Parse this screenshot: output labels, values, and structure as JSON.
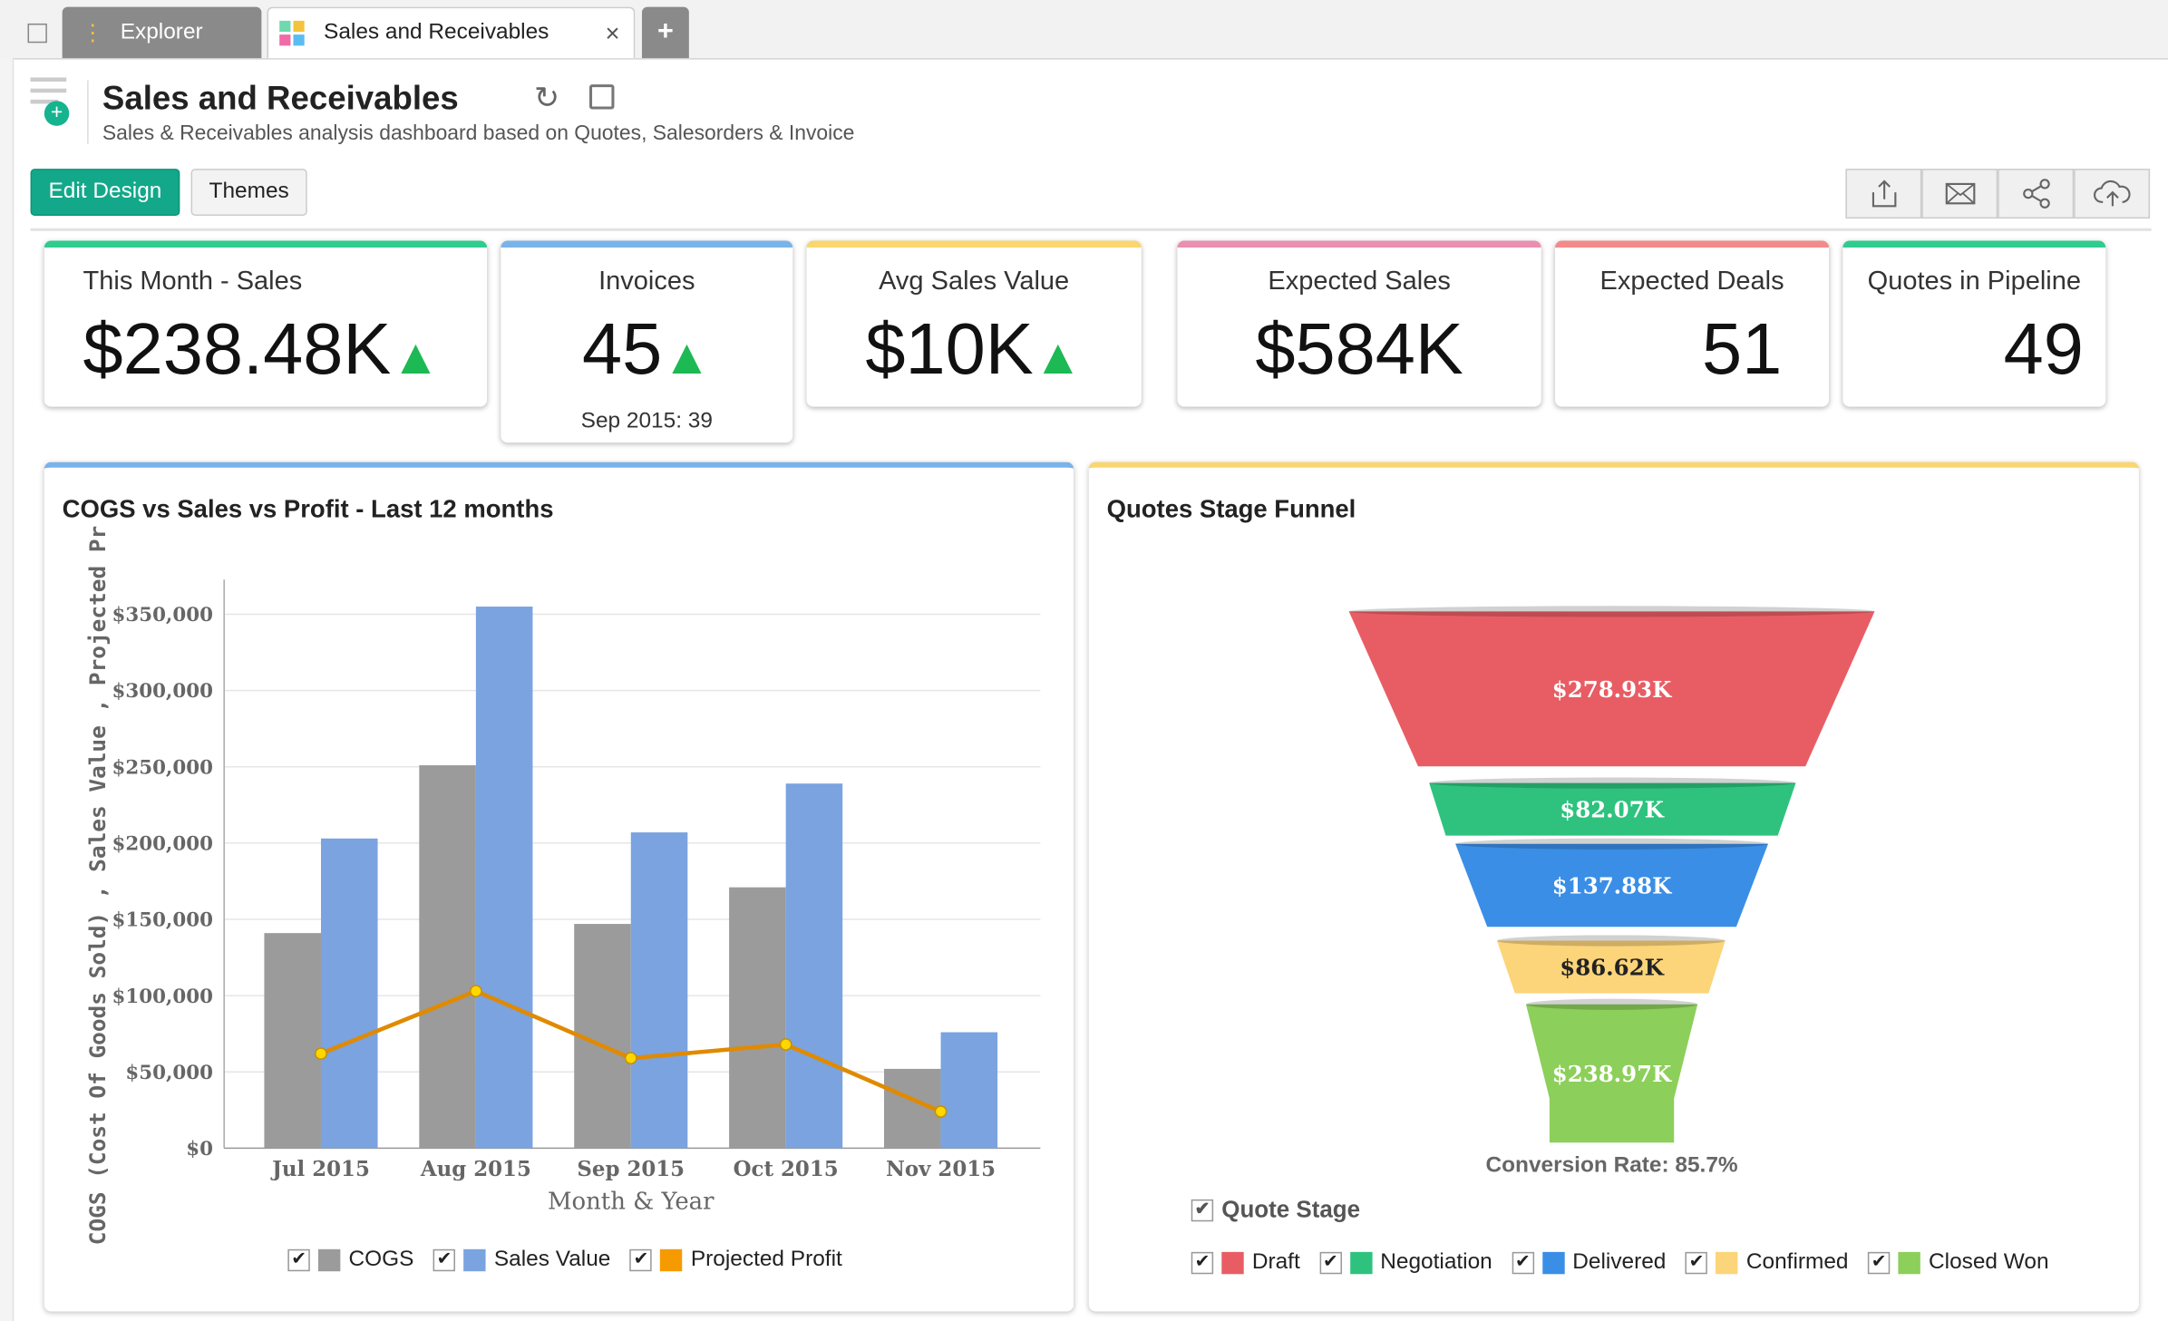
{
  "tabs": {
    "explorer": "Explorer",
    "active": "Sales and Receivables",
    "close": "×",
    "add": "+"
  },
  "header": {
    "title": "Sales and Receivables",
    "subtitle": "Sales & Receivables analysis dashboard based on Quotes, Salesorders & Invoice"
  },
  "toolbar": {
    "edit_design": "Edit Design",
    "themes": "Themes",
    "icons": [
      "export-icon",
      "email-icon",
      "share-icon",
      "publish-cloud-icon"
    ]
  },
  "colors": {
    "accent": "#13a88a",
    "cogs": "#9b9b9b",
    "sales": "#7aa3e0",
    "profit": "#e08a00"
  },
  "kpis": [
    {
      "title": "This Month - Sales",
      "value": "$238.48K",
      "trend": "▲",
      "color": "#2ecc8f"
    },
    {
      "title": "Invoices",
      "value": "45",
      "trend": "▲",
      "sub": "Sep 2015: 39",
      "color": "#7ab3ea"
    },
    {
      "title": "Avg Sales Value",
      "value": "$10K",
      "trend": "▲",
      "color": "#f9d66f"
    },
    {
      "title": "Expected Sales",
      "value": "$584K",
      "color": "#e98fb0"
    },
    {
      "title": "Expected Deals",
      "value": "51",
      "color": "#f28b8b"
    },
    {
      "title": "Quotes in Pipeline",
      "value": "49",
      "color": "#2ecc8f"
    }
  ],
  "chart_data": [
    {
      "type": "bar",
      "title": "COGS vs Sales vs Profit - Last 12 months",
      "xlabel": "Month & Year",
      "ylabel": "COGS (Cost Of Goods Sold) , Sales Value , Projected Pr",
      "categories": [
        "Jul 2015",
        "Aug 2015",
        "Sep 2015",
        "Oct 2015",
        "Nov 2015"
      ],
      "ylim": [
        0,
        350000
      ],
      "yticks": [
        "$0",
        "$50,000",
        "$100,000",
        "$150,000",
        "$200,000",
        "$250,000",
        "$300,000",
        "$350,000"
      ],
      "series": [
        {
          "name": "COGS",
          "type": "bar",
          "color": "#9b9b9b",
          "values": [
            141000,
            251000,
            147000,
            171000,
            52000
          ]
        },
        {
          "name": "Sales Value",
          "type": "bar",
          "color": "#7aa3e0",
          "values": [
            203000,
            355000,
            207000,
            239000,
            76000
          ]
        },
        {
          "name": "Projected Profit",
          "type": "line",
          "color": "#e08a00",
          "values": [
            62000,
            103000,
            59000,
            68000,
            24000
          ]
        }
      ],
      "grid": true,
      "legend": "bottom"
    },
    {
      "type": "funnel",
      "title": "Quotes Stage Funnel",
      "legend_title": "Quote Stage",
      "stages": [
        {
          "name": "Draft",
          "label": "$278.93K",
          "value": 278930,
          "color": "#e85d64"
        },
        {
          "name": "Negotiation",
          "label": "$82.07K",
          "value": 82070,
          "color": "#2ec27e"
        },
        {
          "name": "Delivered",
          "label": "$137.88K",
          "value": 137880,
          "color": "#3a8ee6"
        },
        {
          "name": "Confirmed",
          "label": "$86.62K",
          "value": 86620,
          "color": "#fcd479"
        },
        {
          "name": "Closed Won",
          "label": "$238.97K",
          "value": 238970,
          "color": "#8ccf5a"
        }
      ],
      "conversion": "Conversion Rate: 85.7%",
      "legend": "bottom"
    }
  ]
}
